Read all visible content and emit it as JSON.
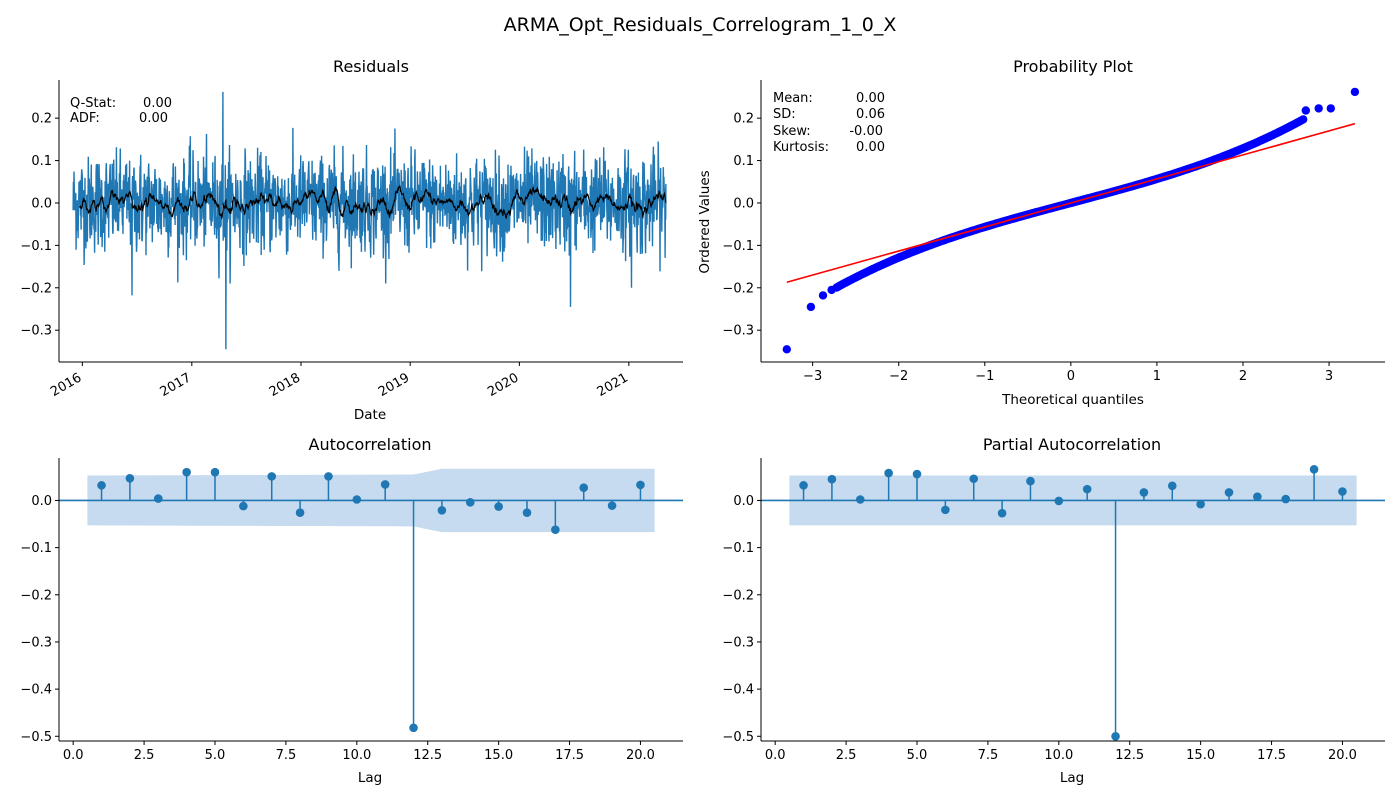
{
  "figure": {
    "title": "ARMA_Opt_Residuals_Correlogram_1_0_X"
  },
  "colors": {
    "series": "#1f77b4",
    "rolling": "#000000",
    "qq_points": "#0000ff",
    "qq_line": "#ff0000",
    "conf_band": "#c6dbef"
  },
  "chart_data": [
    {
      "id": "residuals",
      "type": "line",
      "title": "Residuals",
      "xlabel": "Date",
      "ylabel": "",
      "x_ticks": [
        "2016",
        "2017",
        "2018",
        "2019",
        "2020",
        "2021"
      ],
      "x_range": [
        "2015-10-15",
        "2021-07-01"
      ],
      "y_ticks": [
        0.2,
        0.1,
        0.0,
        -0.1,
        -0.2,
        -0.3
      ],
      "ylim": [
        -0.375,
        0.29
      ],
      "start_date": "2015-12-01",
      "end_date": "2021-05-05",
      "residual_range": [
        -0.345,
        0.262
      ],
      "notable_points": [
        {
          "date": "2017-04-15",
          "value": 0.262
        },
        {
          "date": "2017-04-25",
          "value": -0.345
        },
        {
          "date": "2020-06-20",
          "value": -0.245
        },
        {
          "date": "2016-06-15",
          "value": -0.218
        },
        {
          "date": "2021-01-10",
          "value": -0.2
        }
      ],
      "annotations": [
        {
          "label": "Q-Stat:",
          "value": "0.00"
        },
        {
          "label": "ADF:",
          "value": "0.00"
        }
      ],
      "series": [
        {
          "name": "",
          "values_note": "daily residuals, mostly within ±0.15"
        },
        {
          "name": "",
          "values_note": "rolling mean, within ±0.04"
        }
      ]
    },
    {
      "id": "probplot",
      "type": "scatter",
      "title": "Probability Plot",
      "xlabel": "Theoretical quantiles",
      "ylabel": "Ordered Values",
      "x_ticks": [
        -3,
        -2,
        -1,
        0,
        1,
        2,
        3
      ],
      "xlim": [
        -3.6,
        3.65
      ],
      "y_ticks": [
        0.2,
        0.1,
        0.0,
        -0.1,
        -0.2,
        -0.3
      ],
      "ylim": [
        -0.375,
        0.29
      ],
      "fit_line": {
        "x": [
          -3.3,
          3.3
        ],
        "y": [
          -0.187,
          0.187
        ]
      },
      "extreme_points": [
        {
          "x": -3.3,
          "y": -0.345
        },
        {
          "x": -3.02,
          "y": -0.245
        },
        {
          "x": -2.88,
          "y": -0.218
        },
        {
          "x": -2.78,
          "y": -0.205
        },
        {
          "x": 2.73,
          "y": 0.218
        },
        {
          "x": 2.88,
          "y": 0.223
        },
        {
          "x": 3.02,
          "y": 0.223
        },
        {
          "x": 3.3,
          "y": 0.262
        }
      ],
      "stats": [
        {
          "label": "Mean:",
          "value": "0.00"
        },
        {
          "label": "SD:",
          "value": "0.06"
        },
        {
          "label": "Skew:",
          "value": "-0.00"
        },
        {
          "label": "Kurtosis:",
          "value": "0.00"
        }
      ]
    },
    {
      "id": "acf",
      "type": "stem",
      "title": "Autocorrelation",
      "xlabel": "Lag",
      "ylabel": "",
      "x_ticks": [
        "0.0",
        "2.5",
        "5.0",
        "7.5",
        "10.0",
        "12.5",
        "15.0",
        "17.5",
        "20.0"
      ],
      "xlim": [
        -0.5,
        21.5
      ],
      "y_ticks": [
        0.0,
        -0.1,
        -0.2,
        -0.3,
        -0.4,
        -0.5
      ],
      "ylim": [
        -0.51,
        0.09
      ],
      "lags": [
        1,
        2,
        3,
        4,
        5,
        6,
        7,
        8,
        9,
        10,
        11,
        12,
        13,
        14,
        15,
        16,
        17,
        18,
        19,
        20
      ],
      "values": [
        0.032,
        0.047,
        0.004,
        0.06,
        0.06,
        -0.012,
        0.051,
        -0.026,
        0.051,
        0.002,
        0.034,
        -0.482,
        -0.021,
        -0.004,
        -0.013,
        -0.026,
        -0.062,
        0.027,
        -0.011,
        0.033
      ],
      "conf_band": [
        {
          "lag": 0.5,
          "upper": 0.053,
          "lower": -0.053
        },
        {
          "lag": 12.0,
          "upper": 0.055,
          "lower": -0.055
        },
        {
          "lag": 13.0,
          "upper": 0.067,
          "lower": -0.067
        },
        {
          "lag": 20.5,
          "upper": 0.067,
          "lower": -0.067
        }
      ]
    },
    {
      "id": "pacf",
      "type": "stem",
      "title": "Partial Autocorrelation",
      "xlabel": "Lag",
      "ylabel": "",
      "x_ticks": [
        "0.0",
        "2.5",
        "5.0",
        "7.5",
        "10.0",
        "12.5",
        "15.0",
        "17.5",
        "20.0"
      ],
      "xlim": [
        -0.5,
        21.5
      ],
      "y_ticks": [
        0.0,
        -0.1,
        -0.2,
        -0.3,
        -0.4,
        -0.5
      ],
      "ylim": [
        -0.51,
        0.09
      ],
      "lags": [
        1,
        2,
        3,
        4,
        5,
        6,
        7,
        8,
        9,
        10,
        11,
        12,
        13,
        14,
        15,
        16,
        17,
        18,
        19,
        20
      ],
      "values": [
        0.032,
        0.045,
        0.002,
        0.058,
        0.056,
        -0.02,
        0.046,
        -0.027,
        0.041,
        -0.001,
        0.024,
        -0.5,
        0.017,
        0.031,
        -0.008,
        0.017,
        0.008,
        0.003,
        0.066,
        0.019
      ],
      "conf_band": [
        {
          "lag": 0.5,
          "upper": 0.053,
          "lower": -0.053
        },
        {
          "lag": 20.5,
          "upper": 0.053,
          "lower": -0.053
        }
      ]
    }
  ]
}
